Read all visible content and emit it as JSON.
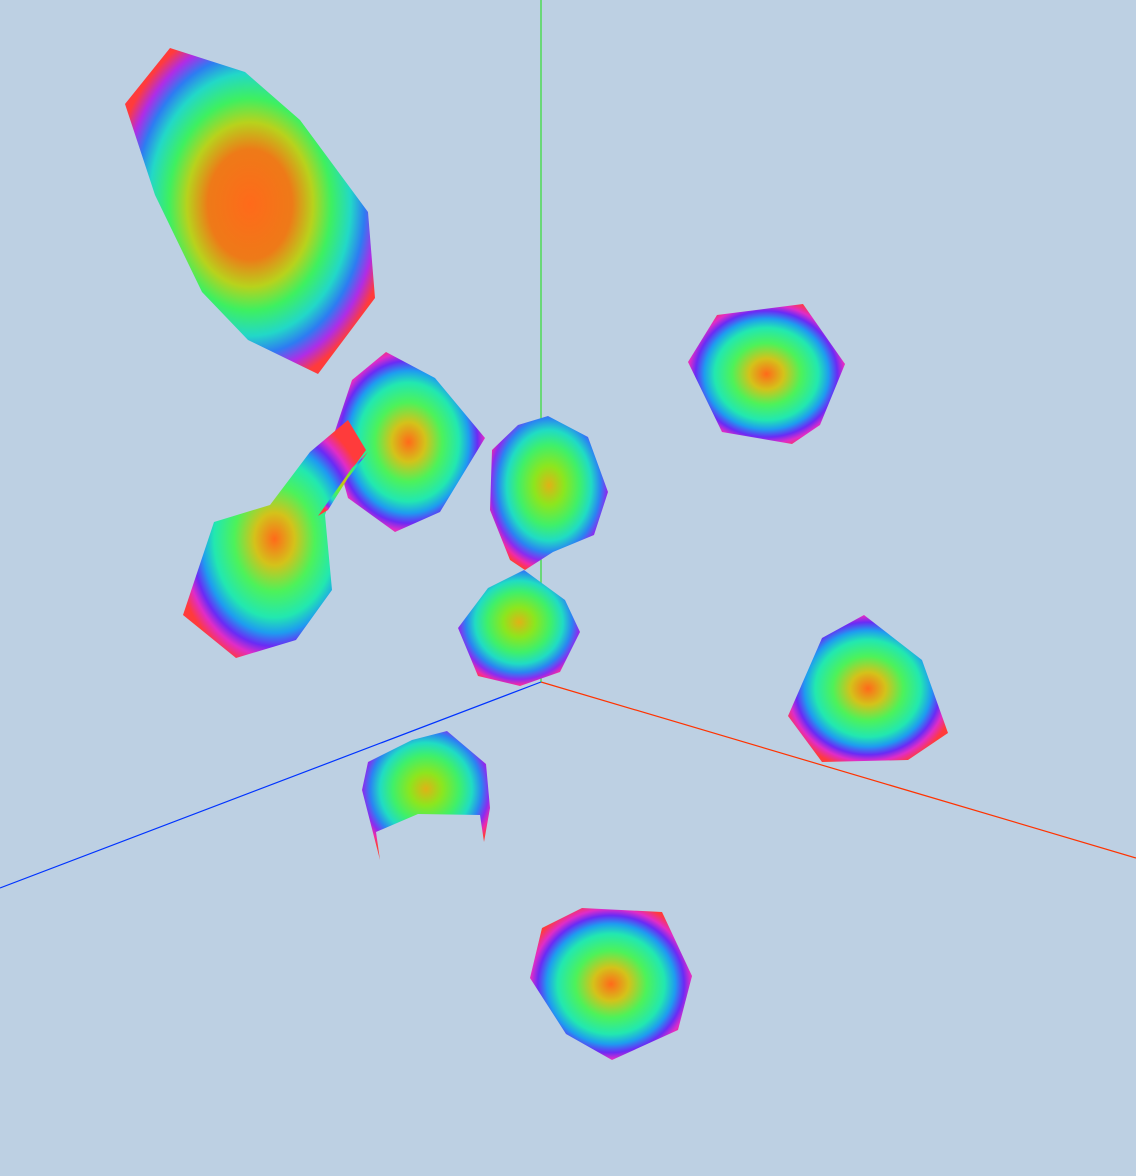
{
  "viewport": {
    "background_color": "#bdd0e3"
  },
  "axes": [
    {
      "name": "x-axis",
      "color": "#ff3300"
    },
    {
      "name": "y-axis",
      "color": "#33dd33"
    },
    {
      "name": "z-axis",
      "color": "#0033ff"
    }
  ],
  "blobs": [
    {
      "name": "blob-1",
      "shading": "normal-rainbow"
    },
    {
      "name": "blob-2",
      "shading": "normal-rainbow"
    },
    {
      "name": "blob-3",
      "shading": "normal-rainbow"
    },
    {
      "name": "blob-4",
      "shading": "normal-rainbow"
    },
    {
      "name": "blob-5",
      "shading": "normal-rainbow"
    },
    {
      "name": "blob-6",
      "shading": "normal-rainbow"
    },
    {
      "name": "blob-7",
      "shading": "normal-rainbow"
    },
    {
      "name": "blob-8",
      "shading": "normal-rainbow"
    },
    {
      "name": "blob-9",
      "shading": "normal-rainbow"
    },
    {
      "name": "blob-10",
      "shading": "normal-rainbow"
    }
  ]
}
